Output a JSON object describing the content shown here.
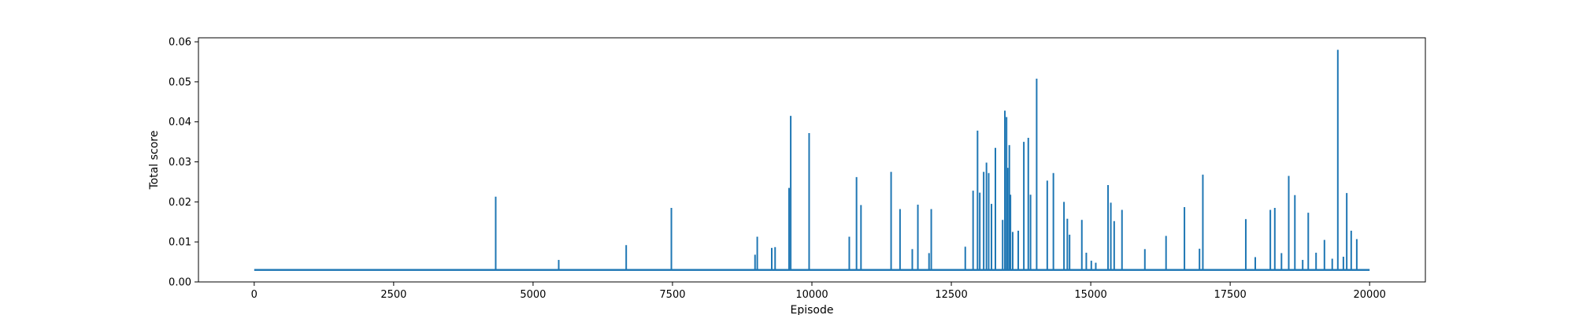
{
  "chart_data": {
    "type": "line",
    "xlabel": "Episode",
    "ylabel": "Total score",
    "xlim": [
      -1000,
      21000
    ],
    "ylim": [
      0,
      0.061
    ],
    "grid": false,
    "legend": "none",
    "line_color": "#1f77b4",
    "xticks": [
      0,
      2500,
      5000,
      7500,
      10000,
      12500,
      15000,
      17500,
      20000
    ],
    "xtick_labels": [
      "0",
      "2500",
      "5000",
      "7500",
      "10000",
      "12500",
      "15000",
      "17500",
      "20000"
    ],
    "yticks": [
      0.0,
      0.01,
      0.02,
      0.03,
      0.04,
      0.05,
      0.06
    ],
    "ytick_labels": [
      "0.00",
      "0.01",
      "0.02",
      "0.03",
      "0.04",
      "0.05",
      "0.06"
    ],
    "baseline": {
      "x_range": [
        0,
        20000
      ],
      "y": 0.003
    },
    "series": [
      {
        "x": [
          4330,
          5460,
          6670,
          7480,
          8980,
          9020,
          9280,
          9340,
          9590,
          9620,
          9950,
          10670,
          10800,
          10880,
          11420,
          11580,
          11800,
          11900,
          12100,
          12140,
          12750,
          12890,
          12970,
          13010,
          13080,
          13130,
          13170,
          13220,
          13290,
          13420,
          13460,
          13490,
          13510,
          13540,
          13560,
          13600,
          13700,
          13800,
          13880,
          13920,
          14030,
          14220,
          14330,
          14520,
          14580,
          14620,
          14840,
          14920,
          15010,
          15090,
          15310,
          15360,
          15420,
          15560,
          15970,
          16350,
          16680,
          16950,
          17010,
          17780,
          17950,
          18220,
          18300,
          18420,
          18550,
          18660,
          18800,
          18900,
          19040,
          19190,
          19330,
          19430,
          19530,
          19590,
          19670,
          19770
        ],
        "y": [
          0.0213,
          0.0055,
          0.0092,
          0.0185,
          0.0068,
          0.0113,
          0.0085,
          0.0087,
          0.0235,
          0.0415,
          0.0372,
          0.0113,
          0.0262,
          0.0192,
          0.0275,
          0.0182,
          0.0082,
          0.0193,
          0.0072,
          0.0182,
          0.0088,
          0.0228,
          0.0378,
          0.0223,
          0.0275,
          0.0298,
          0.0272,
          0.0195,
          0.0335,
          0.0155,
          0.0428,
          0.0412,
          0.0285,
          0.0342,
          0.0218,
          0.0125,
          0.0128,
          0.035,
          0.036,
          0.0218,
          0.0508,
          0.0253,
          0.0272,
          0.02,
          0.0158,
          0.0118,
          0.0155,
          0.0073,
          0.0053,
          0.0048,
          0.0242,
          0.0198,
          0.0152,
          0.018,
          0.0082,
          0.0115,
          0.0187,
          0.0083,
          0.0268,
          0.0157,
          0.0062,
          0.018,
          0.0185,
          0.0072,
          0.0265,
          0.0217,
          0.0055,
          0.0173,
          0.0073,
          0.0105,
          0.0058,
          0.058,
          0.0063,
          0.0222,
          0.0128,
          0.0107
        ]
      }
    ]
  }
}
